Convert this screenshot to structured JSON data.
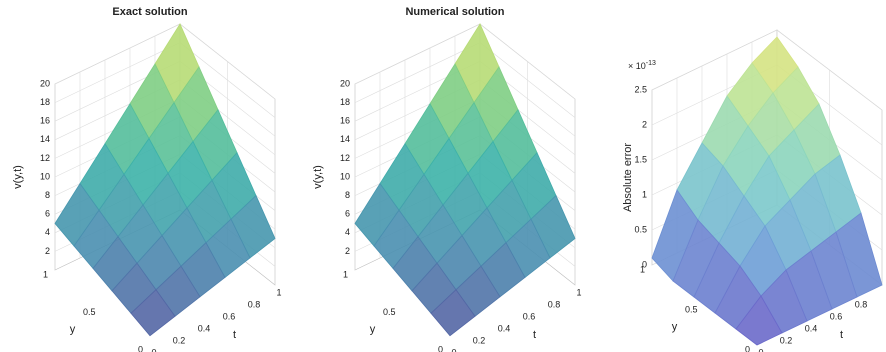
{
  "chart_data": [
    {
      "type": "surface",
      "title": "Exact solution",
      "ylabel": "y",
      "tlabel": "t",
      "zlabel": "v(y,t)",
      "ygrid": [
        0,
        0.2,
        0.4,
        0.6,
        0.8,
        1
      ],
      "tgrid": [
        0,
        0.2,
        0.4,
        0.6,
        0.8,
        1
      ],
      "z": [
        [
          1,
          1.8,
          2.6,
          3.4,
          4.2,
          5
        ],
        [
          1.8,
          3.04,
          4.28,
          5.52,
          6.76,
          8
        ],
        [
          2.6,
          4.28,
          5.96,
          7.64,
          9.32,
          11
        ],
        [
          3.4,
          5.52,
          7.64,
          9.76,
          11.88,
          14
        ],
        [
          4.2,
          6.76,
          9.32,
          11.88,
          14.44,
          17
        ],
        [
          5,
          8,
          11,
          14,
          17,
          20
        ]
      ],
      "ylim": [
        0,
        1
      ],
      "tlim": [
        0,
        1
      ],
      "zlim": [
        0,
        20
      ],
      "yticks": [
        0,
        0.5,
        1
      ],
      "tticks": [
        0,
        0.2,
        0.4,
        0.6,
        0.8,
        1
      ],
      "zticks": [
        2,
        4,
        6,
        8,
        10,
        12,
        14,
        16,
        18,
        20
      ],
      "grid": true,
      "colormap": [
        "#5a4e9e",
        "#4a8fb0",
        "#3cb5a8",
        "#8bd27f",
        "#f3e86a"
      ]
    },
    {
      "type": "surface",
      "title": "Numerical solution",
      "ylabel": "y",
      "tlabel": "t",
      "zlabel": "v(y,t)",
      "ygrid": [
        0,
        0.2,
        0.4,
        0.6,
        0.8,
        1
      ],
      "tgrid": [
        0,
        0.2,
        0.4,
        0.6,
        0.8,
        1
      ],
      "z": [
        [
          1,
          1.8,
          2.6,
          3.4,
          4.2,
          5
        ],
        [
          1.8,
          3.04,
          4.28,
          5.52,
          6.76,
          8
        ],
        [
          2.6,
          4.28,
          5.96,
          7.64,
          9.32,
          11
        ],
        [
          3.4,
          5.52,
          7.64,
          9.76,
          11.88,
          14
        ],
        [
          4.2,
          6.76,
          9.32,
          11.88,
          14.44,
          17
        ],
        [
          5,
          8,
          11,
          14,
          17,
          20
        ]
      ],
      "ylim": [
        0,
        1
      ],
      "tlim": [
        0,
        1
      ],
      "zlim": [
        0,
        20
      ],
      "yticks": [
        0,
        0.5,
        1
      ],
      "tticks": [
        0,
        0.2,
        0.4,
        0.6,
        0.8,
        1
      ],
      "zticks": [
        2,
        4,
        6,
        8,
        10,
        12,
        14,
        16,
        18,
        20
      ],
      "grid": true,
      "colormap": [
        "#5a4e9e",
        "#4a8fb0",
        "#3cb5a8",
        "#8bd27f",
        "#f3e86a"
      ]
    },
    {
      "type": "surface",
      "ylabel": "y",
      "tlabel": "t",
      "zlabel": "Absolute error",
      "z_multiplier": "× 10",
      "z_exponent": "-13",
      "ygrid": [
        0,
        0.2,
        0.4,
        0.6,
        0.8,
        1
      ],
      "tgrid": [
        0,
        0.2,
        0.4,
        0.6,
        0.8,
        1
      ],
      "z": [
        [
          0,
          0,
          0,
          0,
          0,
          0
        ],
        [
          0,
          0.3,
          0.5,
          0.6,
          0.7,
          0.8
        ],
        [
          0,
          0.5,
          0.9,
          1.1,
          1.3,
          1.4
        ],
        [
          0,
          0.6,
          1.1,
          1.5,
          1.7,
          1.9
        ],
        [
          0,
          0.7,
          1.3,
          1.7,
          2.0,
          2.2
        ],
        [
          0.1,
          0.9,
          1.4,
          1.9,
          2.2,
          2.4
        ]
      ],
      "ylim": [
        0,
        1
      ],
      "tlim": [
        0,
        1
      ],
      "zlim": [
        0,
        2.5
      ],
      "yticks": [
        0,
        0.5,
        1
      ],
      "tticks": [
        0,
        0.2,
        0.4,
        0.6,
        0.8
      ],
      "zticks": [
        0,
        0.5,
        1,
        1.5,
        2,
        2.5
      ],
      "grid": true,
      "colormap": [
        "#6a62c8",
        "#6fa6d8",
        "#7fd0c8",
        "#b7e39a",
        "#f1e36e"
      ]
    }
  ]
}
